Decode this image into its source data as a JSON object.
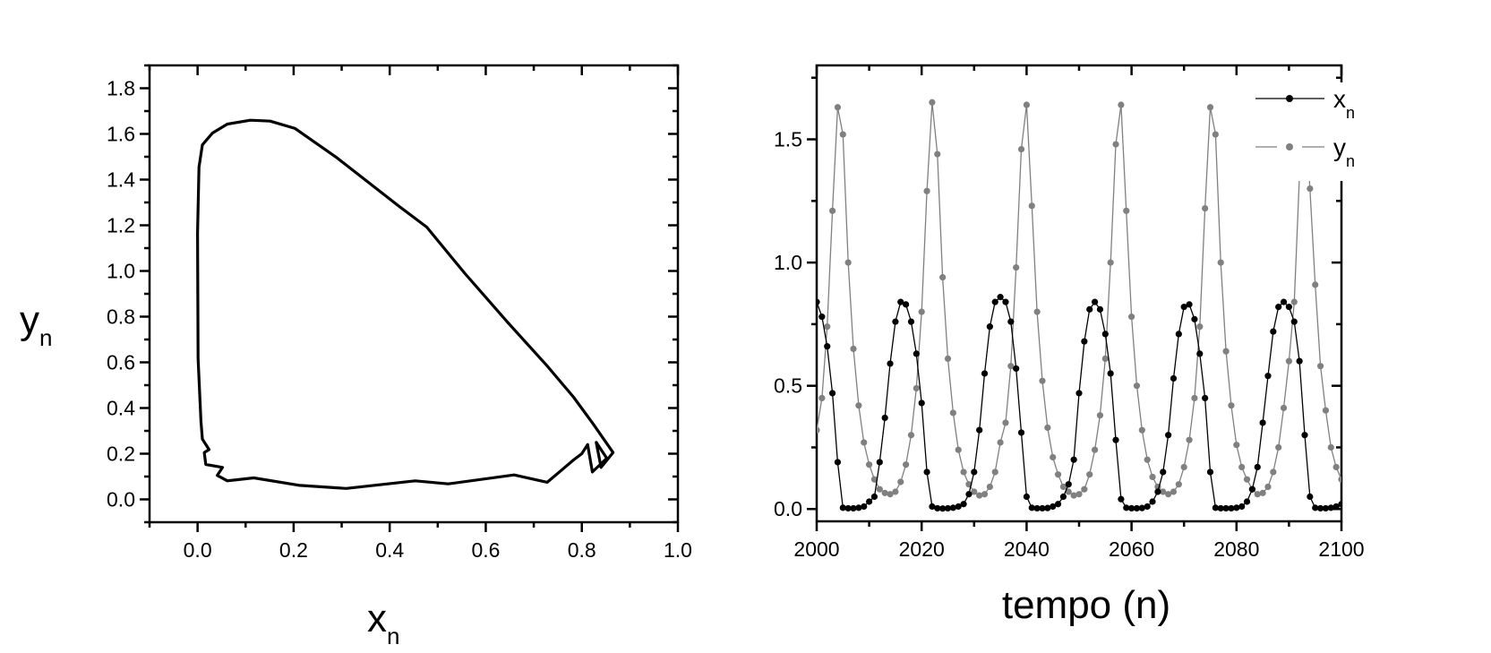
{
  "chart_data": [
    {
      "type": "line",
      "name": "phase-portrait",
      "xlabel": {
        "main": "x",
        "sub": "n"
      },
      "ylabel": {
        "main": "y",
        "sub": "n"
      },
      "xlim": [
        -0.1,
        1.0
      ],
      "ylim": [
        -0.1,
        1.9
      ],
      "xticks": [
        "0.0",
        "0.2",
        "0.4",
        "0.6",
        "0.8",
        "1.0"
      ],
      "yticks": [
        "0.0",
        "0.2",
        "0.4",
        "0.6",
        "0.8",
        "1.0",
        "1.2",
        "1.4",
        "1.6",
        "1.8"
      ],
      "grid": false,
      "color": "#000000",
      "trajectory": [
        [
          0.007,
          0.342
        ],
        [
          0.001,
          0.617
        ],
        [
          0.0,
          1.166
        ],
        [
          0.003,
          1.454
        ],
        [
          0.01,
          1.552
        ],
        [
          0.031,
          1.604
        ],
        [
          0.062,
          1.643
        ],
        [
          0.11,
          1.66
        ],
        [
          0.151,
          1.656
        ],
        [
          0.203,
          1.624
        ],
        [
          0.288,
          1.499
        ],
        [
          0.419,
          1.284
        ],
        [
          0.477,
          1.192
        ],
        [
          0.556,
          0.99
        ],
        [
          0.646,
          0.774
        ],
        [
          0.728,
          0.584
        ],
        [
          0.783,
          0.447
        ],
        [
          0.824,
          0.329
        ],
        [
          0.865,
          0.205
        ],
        [
          0.84,
          0.14
        ],
        [
          0.83,
          0.25
        ],
        [
          0.852,
          0.18
        ],
        [
          0.822,
          0.12
        ],
        [
          0.812,
          0.24
        ],
        [
          0.8,
          0.2
        ],
        [
          0.783,
          0.173
        ],
        [
          0.728,
          0.075
        ],
        [
          0.659,
          0.107
        ],
        [
          0.522,
          0.068
        ],
        [
          0.453,
          0.081
        ],
        [
          0.309,
          0.048
        ],
        [
          0.213,
          0.061
        ],
        [
          0.117,
          0.094
        ],
        [
          0.062,
          0.081
        ],
        [
          0.041,
          0.105
        ],
        [
          0.052,
          0.14
        ],
        [
          0.017,
          0.153
        ],
        [
          0.014,
          0.205
        ],
        [
          0.024,
          0.218
        ],
        [
          0.01,
          0.264
        ],
        [
          0.007,
          0.342
        ]
      ]
    },
    {
      "type": "line",
      "name": "time-series",
      "xlabel": "tempo (n)",
      "xlim": [
        2000,
        2100
      ],
      "ylim": [
        -0.05,
        1.8
      ],
      "xticks": [
        "2000",
        "2020",
        "2040",
        "2060",
        "2080",
        "2100"
      ],
      "yticks": [
        "0.0",
        "0.5",
        "1.0",
        "1.5"
      ],
      "grid": false,
      "legend_position": "top-right",
      "x_start": 2000,
      "series": [
        {
          "name": {
            "main": "x",
            "sub": "n"
          },
          "color": "#000000",
          "values": [
            0.84,
            0.78,
            0.66,
            0.47,
            0.19,
            0.005,
            0.003,
            0.003,
            0.005,
            0.01,
            0.03,
            0.05,
            0.19,
            0.37,
            0.59,
            0.76,
            0.84,
            0.83,
            0.76,
            0.63,
            0.43,
            0.15,
            0.01,
            0.003,
            0.002,
            0.003,
            0.005,
            0.01,
            0.02,
            0.06,
            0.15,
            0.32,
            0.55,
            0.74,
            0.84,
            0.86,
            0.84,
            0.76,
            0.57,
            0.31,
            0.05,
            0.005,
            0.003,
            0.003,
            0.004,
            0.01,
            0.02,
            0.05,
            0.1,
            0.2,
            0.47,
            0.68,
            0.81,
            0.84,
            0.81,
            0.71,
            0.55,
            0.28,
            0.04,
            0.005,
            0.003,
            0.003,
            0.004,
            0.01,
            0.03,
            0.07,
            0.15,
            0.3,
            0.53,
            0.71,
            0.82,
            0.83,
            0.77,
            0.63,
            0.45,
            0.15,
            0.005,
            0.003,
            0.003,
            0.003,
            0.005,
            0.01,
            0.03,
            0.08,
            0.17,
            0.35,
            0.54,
            0.72,
            0.82,
            0.84,
            0.82,
            0.76,
            0.6,
            0.3,
            0.05,
            0.005,
            0.003,
            0.003,
            0.005,
            0.01,
            0.02
          ]
        },
        {
          "name": {
            "main": "y",
            "sub": "n"
          },
          "color": "#808080",
          "values": [
            0.32,
            0.45,
            0.74,
            1.21,
            1.63,
            1.52,
            1.0,
            0.65,
            0.42,
            0.27,
            0.18,
            0.12,
            0.08,
            0.065,
            0.06,
            0.07,
            0.11,
            0.18,
            0.3,
            0.49,
            0.8,
            1.29,
            1.65,
            1.44,
            0.94,
            0.61,
            0.39,
            0.24,
            0.15,
            0.1,
            0.07,
            0.055,
            0.06,
            0.09,
            0.15,
            0.27,
            0.35,
            0.58,
            0.98,
            1.46,
            1.64,
            1.23,
            0.8,
            0.52,
            0.33,
            0.21,
            0.14,
            0.09,
            0.07,
            0.055,
            0.06,
            0.08,
            0.14,
            0.24,
            0.38,
            0.61,
            1.0,
            1.48,
            1.64,
            1.21,
            0.78,
            0.5,
            0.32,
            0.2,
            0.13,
            0.09,
            0.07,
            0.06,
            0.07,
            0.1,
            0.17,
            0.28,
            0.45,
            0.74,
            1.22,
            1.63,
            1.52,
            1.0,
            0.64,
            0.42,
            0.26,
            0.17,
            0.12,
            0.08,
            0.06,
            0.065,
            0.09,
            0.15,
            0.25,
            0.41,
            0.6,
            0.84,
            1.35,
            1.62,
            1.3,
            0.91,
            0.58,
            0.4,
            0.25,
            0.17,
            0.12
          ]
        }
      ]
    }
  ]
}
